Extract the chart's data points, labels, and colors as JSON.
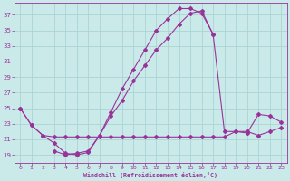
{
  "bg_color": "#caeaea",
  "grid_color": "#aad4d4",
  "line_color": "#993399",
  "xlabel": "Windchill (Refroidissement éolien,°C)",
  "ylabel_ticks": [
    19,
    21,
    23,
    25,
    27,
    29,
    31,
    33,
    35,
    37
  ],
  "xlim": [
    -0.5,
    23.5
  ],
  "ylim": [
    18.0,
    38.5
  ],
  "xticks": [
    0,
    1,
    2,
    3,
    4,
    5,
    6,
    7,
    8,
    9,
    10,
    11,
    12,
    13,
    14,
    15,
    16,
    17,
    18,
    19,
    20,
    21,
    22,
    23
  ],
  "line1_x": [
    0,
    1,
    2,
    3,
    4,
    5,
    6,
    7,
    8,
    9,
    10,
    11,
    12,
    13,
    14,
    15,
    16,
    17
  ],
  "line1_y": [
    25.0,
    22.8,
    21.5,
    20.5,
    19.2,
    19.0,
    19.3,
    21.5,
    24.5,
    27.5,
    30.0,
    32.5,
    35.0,
    36.5,
    37.8,
    37.8,
    37.2,
    34.5
  ],
  "line2_x": [
    0,
    1,
    2,
    3,
    4,
    5,
    6,
    7,
    8,
    9,
    10,
    11,
    12,
    13,
    14,
    15,
    16,
    17,
    18,
    19,
    20,
    21,
    22,
    23
  ],
  "line2_y": [
    25.0,
    22.8,
    21.5,
    21.3,
    21.3,
    21.3,
    21.3,
    21.3,
    21.3,
    21.3,
    21.3,
    21.3,
    21.3,
    21.3,
    21.3,
    21.3,
    21.3,
    21.3,
    21.3,
    22.0,
    22.0,
    21.5,
    22.0,
    22.5
  ],
  "line3_x": [
    3,
    4,
    5,
    6,
    7,
    8,
    9,
    10,
    11,
    12,
    13,
    14,
    15,
    16,
    17,
    18,
    19,
    20,
    21,
    22,
    23
  ],
  "line3_y": [
    19.5,
    19.0,
    19.2,
    19.5,
    21.5,
    24.0,
    26.0,
    28.5,
    30.5,
    32.5,
    34.0,
    35.8,
    37.2,
    37.5,
    34.5,
    22.0,
    22.0,
    21.8,
    24.2,
    24.0,
    23.2
  ]
}
